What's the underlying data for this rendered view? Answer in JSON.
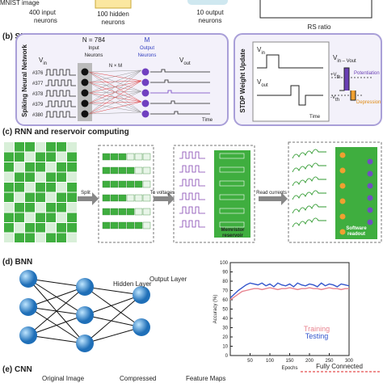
{
  "panel_a": {
    "image_label": "MNIST image",
    "input": [
      "400 input",
      "neurons"
    ],
    "hidden": [
      "100 hidden",
      "neurons"
    ],
    "output": [
      "10 output",
      "neurons"
    ],
    "xlabel": "RS ratio"
  },
  "panel_b": {
    "label": "(b) SNN",
    "left_title": "Spiking Neural Network",
    "rows": [
      "#376",
      "#377",
      "#378",
      "#379",
      "#380"
    ],
    "vin": "V",
    "vin_sub": "in",
    "input_neurons": [
      "N = 784",
      "Input",
      "Neurons"
    ],
    "output_neurons": [
      "M",
      "Output",
      "Neurons"
    ],
    "nxm": "N × M",
    "vout": "V",
    "vout_sub": "out",
    "time": "Time",
    "right_title": "STDP Weight Update",
    "r_vin": "V",
    "r_vin_sub": "in",
    "r_vout": "V",
    "r_vout_sub": "out",
    "r_time": "Time",
    "diff": "V",
    "diff_sub": "in – V",
    "diff_sub2": "out",
    "pth": "+V",
    "pth_sub": "th",
    "nth": "-V",
    "nth_sub": "th",
    "potentiation": "Potentiation",
    "depression": "Depression"
  },
  "panel_c": {
    "label": "(c) RNN and reservoir computing",
    "split": "Split",
    "to_voltages": "To voltages",
    "read_currents": "Read currents",
    "reservoir": [
      "Memristor",
      "reservoir"
    ],
    "readout": [
      "Software",
      "readout"
    ]
  },
  "panel_d": {
    "label": "(d) BNN",
    "hidden": "Hidden Layer",
    "output": "Output Layer",
    "chart": {
      "type": "line",
      "xlabel": "Epochs",
      "ylabel": "Accuracy (%)",
      "xlim": [
        0,
        300
      ],
      "ylim": [
        0,
        100
      ],
      "xticks": [
        50,
        100,
        150,
        200,
        250,
        300
      ],
      "yticks": [
        0,
        10,
        20,
        30,
        40,
        50,
        60,
        70,
        80,
        90,
        100
      ],
      "x": [
        0,
        10,
        20,
        30,
        40,
        50,
        60,
        70,
        80,
        90,
        100,
        110,
        120,
        130,
        140,
        150,
        160,
        170,
        180,
        190,
        200,
        210,
        220,
        230,
        240,
        250,
        260,
        270,
        280,
        290,
        300
      ],
      "series": [
        {
          "name": "Training",
          "color": "#e8838f",
          "values": [
            60,
            63,
            66,
            69,
            70,
            71,
            72,
            72,
            71,
            72,
            73,
            72,
            71,
            72,
            72,
            73,
            72,
            71,
            72,
            72,
            73,
            72,
            72,
            71,
            72,
            73,
            72,
            72,
            71,
            72,
            72
          ]
        },
        {
          "name": "Testing",
          "color": "#3355cc",
          "values": [
            62,
            66,
            70,
            73,
            76,
            78,
            77,
            76,
            78,
            75,
            77,
            74,
            78,
            76,
            75,
            77,
            74,
            78,
            76,
            75,
            77,
            76,
            74,
            78,
            75,
            77,
            76,
            74,
            77,
            76,
            75
          ]
        }
      ]
    }
  },
  "panel_e": {
    "label": "(e) CNN",
    "original": "Original Image",
    "compressed": "Compressed",
    "feature": "Feature Maps",
    "fc": "Fully Connected"
  }
}
